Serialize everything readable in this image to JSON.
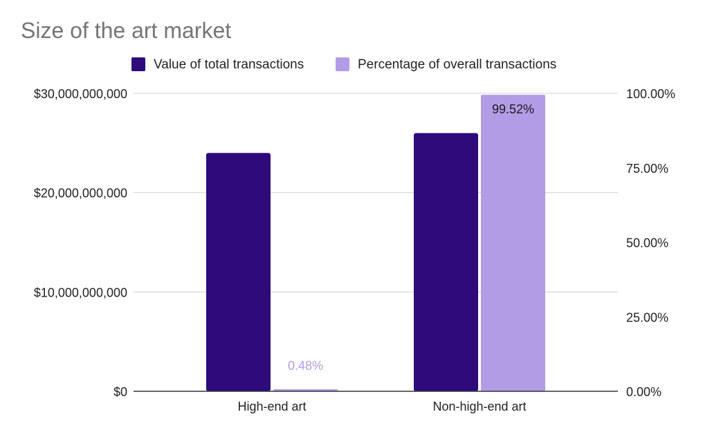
{
  "chart_data": {
    "type": "bar",
    "title": "Size of the art market",
    "categories": [
      "High-end art",
      "Non-high-end art"
    ],
    "legend_position": "top",
    "grid": true,
    "series": [
      {
        "name": "Value of total transactions",
        "axis": "left",
        "color": "#2e0a7a",
        "values": [
          24000000000,
          26000000000
        ]
      },
      {
        "name": "Percentage of overall transactions",
        "axis": "right",
        "color": "#b39ce6",
        "values": [
          0.48,
          99.52
        ],
        "data_labels": [
          "0.48%",
          "99.52%"
        ]
      }
    ],
    "y_left": {
      "range": [
        0,
        30000000000
      ],
      "ticks": [
        0,
        10000000000,
        20000000000,
        30000000000
      ],
      "tick_labels": [
        "$0",
        "$10,000,000,000",
        "$20,000,000,000",
        "$30,000,000,000"
      ]
    },
    "y_right": {
      "range": [
        0,
        100
      ],
      "ticks": [
        0,
        25,
        50,
        75,
        100
      ],
      "tick_labels": [
        "0.00%",
        "25.00%",
        "50.00%",
        "75.00%",
        "100.00%"
      ]
    },
    "colors": {
      "title": "#757575",
      "axis_text": "#222222",
      "gridline": "#d0d0d0",
      "baseline": "#333333",
      "inside_label": "#1a1a1a"
    }
  }
}
